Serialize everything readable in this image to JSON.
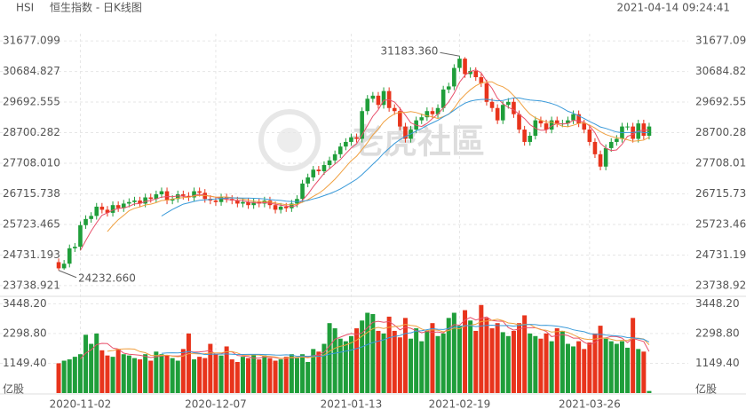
{
  "chart_data": {
    "type": "candlestick",
    "symbol": "HSI",
    "title": "恒生指数 - 日K线图",
    "timestamp": "2021-04-14 09:24:41",
    "watermark": "老虎社區",
    "up_color": "#1f9e3a",
    "down_color": "#e8341c",
    "categories": [
      null,
      null,
      null,
      null,
      "2020-11-02",
      null,
      null,
      null,
      null,
      null,
      null,
      null,
      null,
      null,
      null,
      null,
      null,
      null,
      null,
      null,
      null,
      null,
      null,
      null,
      null,
      null,
      null,
      null,
      null,
      "2020-12-07",
      null,
      null,
      null,
      null,
      null,
      null,
      null,
      null,
      null,
      null,
      null,
      null,
      null,
      null,
      null,
      null,
      null,
      null,
      null,
      null,
      null,
      null,
      null,
      null,
      "2021-01-13",
      null,
      null,
      null,
      null,
      null,
      null,
      null,
      null,
      null,
      null,
      null,
      null,
      null,
      null,
      null,
      null,
      null,
      null,
      null,
      "2021-02-19",
      null,
      null,
      null,
      null,
      null,
      null,
      null,
      null,
      null,
      null,
      null,
      null,
      null,
      null,
      null,
      null,
      null,
      null,
      null,
      null,
      null,
      null,
      null,
      "2021-03-26",
      null,
      null,
      null,
      null,
      null,
      null,
      null,
      null,
      null,
      null,
      null
    ],
    "open": [
      24500,
      24300,
      24450,
      24950,
      25000,
      25700,
      25900,
      26000,
      26300,
      26200,
      26100,
      26350,
      26250,
      26400,
      26450,
      26500,
      26400,
      26600,
      26550,
      26700,
      26800,
      26500,
      26550,
      26700,
      26650,
      26600,
      26800,
      26750,
      26550,
      26500,
      26450,
      26600,
      26550,
      26500,
      26400,
      26450,
      26350,
      26450,
      26400,
      26500,
      26350,
      26200,
      26300,
      26250,
      26400,
      26550,
      27050,
      27250,
      27500,
      27450,
      27650,
      27800,
      28000,
      28250,
      28400,
      28550,
      28500,
      29400,
      29800,
      29900,
      29600,
      30050,
      29500,
      29400,
      28900,
      28500,
      28800,
      29100,
      29200,
      29400,
      29300,
      29500,
      30100,
      30200,
      30800,
      31100,
      30600,
      30700,
      30500,
      30300,
      29700,
      29500,
      29100,
      29600,
      29700,
      29300,
      28800,
      28400,
      28600,
      29100,
      29000,
      28800,
      29100,
      29000,
      29000,
      29100,
      29300,
      29000,
      28800,
      28400,
      28000,
      27600,
      28200,
      28400,
      28500,
      28900,
      28900,
      28500,
      29000,
      28600
    ],
    "high": [
      24620,
      24570,
      25070,
      25120,
      25820,
      26020,
      26120,
      26420,
      26420,
      26320,
      26470,
      26470,
      26520,
      26570,
      26620,
      26620,
      26720,
      26720,
      26820,
      26920,
      26920,
      26670,
      26820,
      26820,
      26770,
      26920,
      26920,
      26870,
      26670,
      26620,
      26720,
      26720,
      26670,
      26620,
      26570,
      26570,
      26570,
      26570,
      26620,
      26620,
      26470,
      26420,
      26420,
      26520,
      26670,
      27170,
      27370,
      27620,
      27620,
      27770,
      27920,
      28120,
      28370,
      28520,
      28670,
      28670,
      29520,
      29920,
      30020,
      30020,
      30170,
      30170,
      29620,
      29520,
      29020,
      28920,
      29220,
      29320,
      29520,
      29520,
      29620,
      30220,
      30320,
      30920,
      31183.36,
      31150,
      30820,
      30820,
      30620,
      30420,
      29820,
      29620,
      29720,
      29820,
      29820,
      29420,
      28920,
      28720,
      29220,
      29220,
      29120,
      29220,
      29220,
      29120,
      29220,
      29420,
      29420,
      29120,
      28920,
      28520,
      28120,
      28320,
      28520,
      28620,
      29020,
      29020,
      29020,
      29120,
      29120,
      29020
    ],
    "low": [
      24232.66,
      24250,
      24330,
      24830,
      24880,
      25580,
      25780,
      25880,
      26080,
      25980,
      25980,
      26130,
      26130,
      26280,
      26330,
      26280,
      26280,
      26430,
      26430,
      26580,
      26380,
      26380,
      26430,
      26530,
      26480,
      26480,
      26630,
      26430,
      26380,
      26330,
      26330,
      26430,
      26380,
      26280,
      26280,
      26230,
      26230,
      26280,
      26280,
      26230,
      26080,
      26080,
      26130,
      26130,
      26280,
      26430,
      26930,
      27130,
      27330,
      27330,
      27530,
      27680,
      27880,
      28130,
      28280,
      28380,
      28380,
      29280,
      29680,
      29480,
      29480,
      29380,
      29280,
      28780,
      28380,
      28380,
      28680,
      28980,
      29080,
      29180,
      29180,
      29380,
      29980,
      30080,
      30680,
      30480,
      30480,
      30380,
      30180,
      29580,
      29380,
      28980,
      28980,
      29480,
      29180,
      28680,
      28280,
      28280,
      28480,
      28880,
      28680,
      28680,
      28880,
      28880,
      28880,
      28980,
      28880,
      28680,
      28280,
      27880,
      27480,
      27480,
      28080,
      28280,
      28380,
      28780,
      28380,
      28380,
      28480,
      28480
    ],
    "close": [
      24300,
      24450,
      24950,
      25000,
      25700,
      25900,
      26000,
      26300,
      26200,
      26100,
      26350,
      26250,
      26400,
      26450,
      26500,
      26400,
      26600,
      26550,
      26700,
      26800,
      26500,
      26550,
      26700,
      26650,
      26600,
      26800,
      26750,
      26550,
      26500,
      26450,
      26600,
      26550,
      26500,
      26400,
      26450,
      26350,
      26450,
      26400,
      26500,
      26350,
      26200,
      26300,
      26250,
      26400,
      26550,
      27050,
      27250,
      27500,
      27450,
      27650,
      27800,
      28000,
      28250,
      28400,
      28550,
      28500,
      29400,
      29800,
      29900,
      29600,
      30050,
      29500,
      29400,
      28900,
      28500,
      28800,
      29100,
      29200,
      29400,
      29300,
      29500,
      30100,
      30200,
      30800,
      31100,
      30600,
      30700,
      30500,
      30300,
      29700,
      29500,
      29100,
      29600,
      29700,
      29300,
      28800,
      28400,
      28600,
      29100,
      29000,
      28800,
      29100,
      29000,
      29000,
      29100,
      29300,
      29000,
      28800,
      28400,
      28000,
      27600,
      28200,
      28400,
      28500,
      28900,
      28900,
      28500,
      29000,
      28600,
      28900
    ],
    "ylim": [
      23420,
      31910
    ],
    "yticks": [
      {
        "value": 23738.921,
        "label": "23738.921"
      },
      24731.193,
      25723.465,
      26715.738,
      {
        "value": 27708.01,
        "label": "27708.010"
      },
      28700.282,
      29692.555,
      30684.827,
      31677.099
    ],
    "annotations": [
      {
        "text": "31183.360"
      },
      {
        "text": "24232.660"
      }
    ],
    "volume": {
      "unit": "亿股",
      "values": [
        1150,
        1250,
        1300,
        1400,
        1500,
        2250,
        1900,
        2300,
        1650,
        1450,
        1400,
        1700,
        1500,
        1450,
        1350,
        1300,
        1500,
        1250,
        1600,
        1500,
        1450,
        1350,
        1250,
        1700,
        2300,
        1300,
        1400,
        1350,
        1900,
        1500,
        1450,
        1800,
        1300,
        1200,
        1400,
        1350,
        1500,
        1300,
        1450,
        1350,
        1250,
        1300,
        1400,
        1500,
        1350,
        1500,
        1200,
        1700,
        1600,
        1900,
        2700,
        2500,
        2100,
        2000,
        2200,
        2500,
        2800,
        3100,
        3050,
        2400,
        2300,
        2950,
        2400,
        2150,
        2900,
        2100,
        2500,
        2000,
        2400,
        2700,
        2200,
        2300,
        2900,
        3100,
        2600,
        3200,
        2800,
        2400,
        3400,
        2900,
        2500,
        2700,
        2350,
        2200,
        2400,
        2700,
        3000,
        2300,
        2200,
        2100,
        2300,
        2000,
        2500,
        2400,
        1900,
        1800,
        2000,
        1700,
        1950,
        2300,
        2600,
        2100,
        2000,
        1900,
        2000,
        1750,
        2900,
        1700,
        1600,
        80
      ],
      "ylim": [
        0,
        3700
      ],
      "yticks": [
        {
          "value": 1149.4,
          "label": "1149.40"
        },
        {
          "value": 2298.8,
          "label": "2298.80"
        },
        {
          "value": 3448.2,
          "label": "3448.20"
        }
      ]
    }
  }
}
